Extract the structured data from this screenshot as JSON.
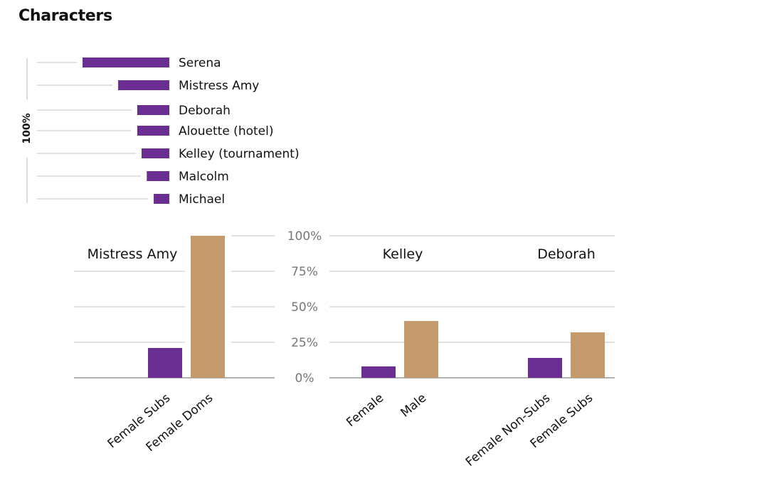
{
  "title": "Characters",
  "colors": {
    "purple": "#6a2d91",
    "tan": "#c49a6c",
    "grid": "#cfcfcf",
    "axis": "#999999",
    "text": "#111111",
    "tick": "#777777"
  },
  "chart_data": [
    {
      "type": "bar",
      "orientation": "horizontal",
      "axis_label": "100%",
      "categories": [
        "Serena",
        "Mistress Amy",
        "Deborah",
        "Alouette (hotel)",
        "Kelley (tournament)",
        "Malcolm",
        "Michael"
      ],
      "values": [
        100,
        59,
        37,
        37,
        32,
        26,
        18
      ],
      "xlim": [
        0,
        100
      ]
    },
    {
      "type": "bar",
      "title": "Mistress Amy",
      "categories": [
        "Female Subs",
        "Female Doms"
      ],
      "values": [
        21,
        100
      ],
      "ylim": [
        0,
        100
      ]
    },
    {
      "type": "bar",
      "title": "Kelley",
      "categories": [
        "Female",
        "Male"
      ],
      "values": [
        8,
        40
      ],
      "ylim": [
        0,
        100
      ]
    },
    {
      "type": "bar",
      "title": "Deborah",
      "categories": [
        "Female Non-Subs",
        "Female Subs"
      ],
      "values": [
        14,
        32
      ],
      "ylim": [
        0,
        100
      ]
    }
  ],
  "y_ticks": [
    "100%",
    "75%",
    "50%",
    "25%",
    "0%"
  ]
}
